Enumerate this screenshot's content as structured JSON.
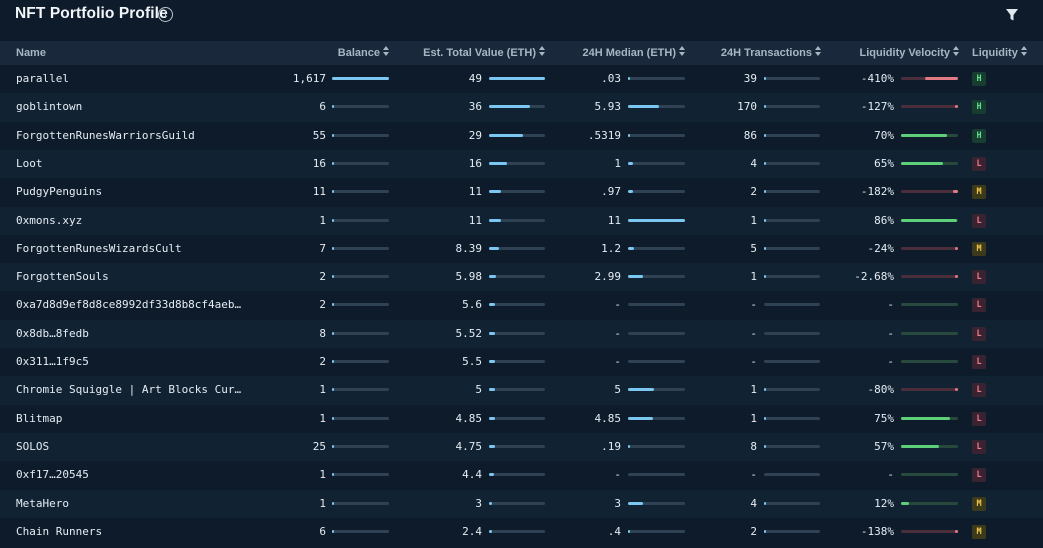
{
  "header": {
    "title": "NFT Portfolio Profile",
    "info_icon": "info-circle-icon",
    "filter_icon": "filter-funnel-icon"
  },
  "columns": {
    "name": "Name",
    "balance": "Balance",
    "value": "Est. Total Value (ETH)",
    "median": "24H Median (ETH)",
    "tx": "24H Transactions",
    "velocity": "Liquidity Velocity",
    "liquidity": "Liquidity"
  },
  "colors": {
    "bar_blue": "#7cc6f2",
    "bar_green": "#5fd07a",
    "bar_red": "#e27a84",
    "badge_H_bg": "#173d31",
    "badge_H_fg": "#5fe08a",
    "badge_L_bg": "#3a2331",
    "badge_L_fg": "#f0788a",
    "badge_M_bg": "#3d3a1c",
    "badge_M_fg": "#f1c94a"
  },
  "rows": [
    {
      "name": "parallel",
      "balance": "1,617",
      "balance_frac": 1.0,
      "value": "49",
      "value_frac": 1.0,
      "median": ".03",
      "median_frac": 0.003,
      "tx": "39",
      "tx_frac": 0.03,
      "velocity": "-410%",
      "velocity_frac": 0.58,
      "velocity_sign": "neg",
      "liquidity": "H"
    },
    {
      "name": "goblintown",
      "balance": "6",
      "balance_frac": 0.01,
      "value": "36",
      "value_frac": 0.73,
      "median": "5.93",
      "median_frac": 0.54,
      "tx": "170",
      "tx_frac": 0.04,
      "velocity": "-127%",
      "velocity_frac": 0.05,
      "velocity_sign": "neg",
      "liquidity": "H"
    },
    {
      "name": "ForgottenRunesWarriorsGuild",
      "balance": "55",
      "balance_frac": 0.02,
      "value": "29",
      "value_frac": 0.6,
      "median": ".5319",
      "median_frac": 0.03,
      "tx": "86",
      "tx_frac": 0.03,
      "velocity": "70%",
      "velocity_frac": 0.8,
      "velocity_sign": "pos",
      "liquidity": "H"
    },
    {
      "name": "Loot",
      "balance": "16",
      "balance_frac": 0.01,
      "value": "16",
      "value_frac": 0.33,
      "median": "1",
      "median_frac": 0.08,
      "tx": "4",
      "tx_frac": 0.02,
      "velocity": "65%",
      "velocity_frac": 0.74,
      "velocity_sign": "pos",
      "liquidity": "L"
    },
    {
      "name": "PudgyPenguins",
      "balance": "11",
      "balance_frac": 0.01,
      "value": "11",
      "value_frac": 0.22,
      "median": ".97",
      "median_frac": 0.08,
      "tx": "2",
      "tx_frac": 0.02,
      "velocity": "-182%",
      "velocity_frac": 0.09,
      "velocity_sign": "neg",
      "liquidity": "M"
    },
    {
      "name": "0xmons.xyz",
      "balance": "1",
      "balance_frac": 0.01,
      "value": "11",
      "value_frac": 0.22,
      "median": "11",
      "median_frac": 1.0,
      "tx": "1",
      "tx_frac": 0.02,
      "velocity": "86%",
      "velocity_frac": 0.98,
      "velocity_sign": "pos",
      "liquidity": "L"
    },
    {
      "name": "ForgottenRunesWizardsCult",
      "balance": "7",
      "balance_frac": 0.01,
      "value": "8.39",
      "value_frac": 0.17,
      "median": "1.2",
      "median_frac": 0.1,
      "tx": "5",
      "tx_frac": 0.02,
      "velocity": "-24%",
      "velocity_frac": 0.0,
      "velocity_sign": "neg",
      "liquidity": "M"
    },
    {
      "name": "ForgottenSouls",
      "balance": "2",
      "balance_frac": 0.01,
      "value": "5.98",
      "value_frac": 0.12,
      "median": "2.99",
      "median_frac": 0.27,
      "tx": "1",
      "tx_frac": 0.02,
      "velocity": "-2.68%",
      "velocity_frac": 0.0,
      "velocity_sign": "neg",
      "liquidity": "L"
    },
    {
      "name": "0xa7d8d9ef8d8ce8992df33d8b8cf4aeb…",
      "balance": "2",
      "balance_frac": 0.01,
      "value": "5.6",
      "value_frac": 0.11,
      "median": "-",
      "median_frac": 0,
      "tx": "-",
      "tx_frac": 0,
      "velocity": "-",
      "velocity_frac": 0,
      "velocity_sign": "none",
      "liquidity": "L"
    },
    {
      "name": "0x8db…8fedb",
      "balance": "8",
      "balance_frac": 0.01,
      "value": "5.52",
      "value_frac": 0.11,
      "median": "-",
      "median_frac": 0,
      "tx": "-",
      "tx_frac": 0,
      "velocity": "-",
      "velocity_frac": 0,
      "velocity_sign": "none",
      "liquidity": "L"
    },
    {
      "name": "0x311…1f9c5",
      "balance": "2",
      "balance_frac": 0.01,
      "value": "5.5",
      "value_frac": 0.11,
      "median": "-",
      "median_frac": 0,
      "tx": "-",
      "tx_frac": 0,
      "velocity": "-",
      "velocity_frac": 0,
      "velocity_sign": "none",
      "liquidity": "L"
    },
    {
      "name": "Chromie Squiggle | Art Blocks Curated",
      "balance": "1",
      "balance_frac": 0.01,
      "value": "5",
      "value_frac": 0.1,
      "median": "5",
      "median_frac": 0.45,
      "tx": "1",
      "tx_frac": 0.02,
      "velocity": "-80%",
      "velocity_frac": 0.03,
      "velocity_sign": "neg",
      "liquidity": "L"
    },
    {
      "name": "Blitmap",
      "balance": "1",
      "balance_frac": 0.01,
      "value": "4.85",
      "value_frac": 0.1,
      "median": "4.85",
      "median_frac": 0.44,
      "tx": "1",
      "tx_frac": 0.02,
      "velocity": "75%",
      "velocity_frac": 0.86,
      "velocity_sign": "pos",
      "liquidity": "L"
    },
    {
      "name": "SOLOS",
      "balance": "25",
      "balance_frac": 0.01,
      "value": "4.75",
      "value_frac": 0.1,
      "median": ".19",
      "median_frac": 0.02,
      "tx": "8",
      "tx_frac": 0.02,
      "velocity": "57%",
      "velocity_frac": 0.66,
      "velocity_sign": "pos",
      "liquidity": "L"
    },
    {
      "name": "0xf17…20545",
      "balance": "1",
      "balance_frac": 0.01,
      "value": "4.4",
      "value_frac": 0.09,
      "median": "-",
      "median_frac": 0,
      "tx": "-",
      "tx_frac": 0,
      "velocity": "-",
      "velocity_frac": 0,
      "velocity_sign": "none",
      "liquidity": "L"
    },
    {
      "name": "MetaHero",
      "balance": "1",
      "balance_frac": 0.01,
      "value": "3",
      "value_frac": 0.06,
      "median": "3",
      "median_frac": 0.27,
      "tx": "4",
      "tx_frac": 0.02,
      "velocity": "12%",
      "velocity_frac": 0.14,
      "velocity_sign": "pos",
      "liquidity": "M"
    },
    {
      "name": "Chain Runners",
      "balance": "6",
      "balance_frac": 0.01,
      "value": "2.4",
      "value_frac": 0.05,
      "median": ".4",
      "median_frac": 0.04,
      "tx": "2",
      "tx_frac": 0.02,
      "velocity": "-138%",
      "velocity_frac": 0.06,
      "velocity_sign": "neg",
      "liquidity": "M"
    }
  ]
}
